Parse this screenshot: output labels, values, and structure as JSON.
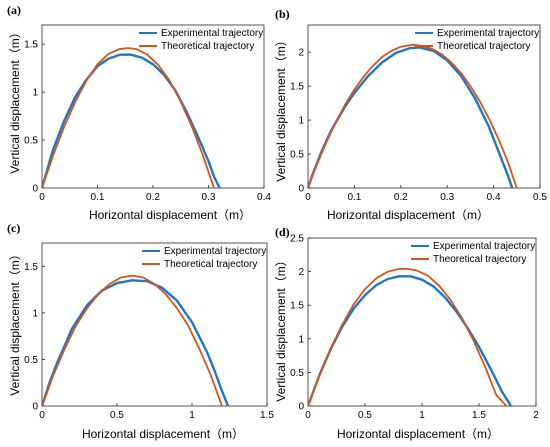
{
  "colors": {
    "experimental": "#1f77c4",
    "theoretical": "#d95319"
  },
  "chart_data": [
    {
      "type": "line",
      "panel_label": "(a)",
      "xlabel": "Horizontal displacement（m）",
      "ylabel": "Vertical displacement（m）",
      "xlim": [
        0,
        0.4
      ],
      "ylim": [
        0,
        1.7
      ],
      "xticks": [
        0,
        0.1,
        0.2,
        0.3,
        0.4
      ],
      "xtick_labels": [
        "0",
        "0.1",
        "0.2",
        "0.3",
        "0.4"
      ],
      "yticks": [
        0,
        0.5,
        1,
        1.5
      ],
      "ytick_labels": [
        "0",
        "0.5",
        "1",
        "1.5"
      ],
      "legend_position": "top-right",
      "series": [
        {
          "name": "Experimental trajectory",
          "x": [
            0,
            0.01,
            0.02,
            0.04,
            0.06,
            0.08,
            0.1,
            0.12,
            0.14,
            0.16,
            0.18,
            0.2,
            0.22,
            0.24,
            0.26,
            0.28,
            0.3,
            0.31,
            0.32
          ],
          "y": [
            0,
            0.2,
            0.4,
            0.7,
            0.95,
            1.13,
            1.27,
            1.35,
            1.39,
            1.39,
            1.36,
            1.29,
            1.18,
            1.02,
            0.8,
            0.55,
            0.28,
            0.12,
            0
          ]
        },
        {
          "name": "Theoretical trajectory",
          "x": [
            0,
            0.02,
            0.04,
            0.06,
            0.08,
            0.1,
            0.12,
            0.14,
            0.155,
            0.17,
            0.19,
            0.21,
            0.23,
            0.25,
            0.27,
            0.29,
            0.31
          ],
          "y": [
            0,
            0.34,
            0.64,
            0.9,
            1.12,
            1.29,
            1.4,
            1.45,
            1.46,
            1.45,
            1.39,
            1.28,
            1.12,
            0.9,
            0.64,
            0.34,
            0
          ]
        }
      ]
    },
    {
      "type": "line",
      "panel_label": "(b)",
      "xlabel": "Horizontal displacement（m）",
      "ylabel": "Vertical displacement（m）",
      "xlim": [
        0,
        0.5
      ],
      "ylim": [
        0,
        2.4
      ],
      "xticks": [
        0,
        0.1,
        0.2,
        0.3,
        0.4,
        0.5
      ],
      "xtick_labels": [
        "0",
        "0.1",
        "0.2",
        "0.3",
        "0.4",
        "0.5"
      ],
      "yticks": [
        0,
        0.5,
        1,
        1.5,
        2
      ],
      "ytick_labels": [
        "0",
        "0.5",
        "1",
        "1.5",
        "2"
      ],
      "legend_position": "top-right",
      "series": [
        {
          "name": "Experimental trajectory",
          "x": [
            0,
            0.01,
            0.03,
            0.05,
            0.08,
            0.1,
            0.13,
            0.16,
            0.19,
            0.22,
            0.24,
            0.27,
            0.3,
            0.33,
            0.36,
            0.39,
            0.41,
            0.43,
            0.44
          ],
          "y": [
            0,
            0.2,
            0.55,
            0.85,
            1.2,
            1.4,
            1.65,
            1.85,
            1.99,
            2.06,
            2.07,
            2.02,
            1.88,
            1.65,
            1.32,
            0.9,
            0.55,
            0.2,
            0
          ]
        },
        {
          "name": "Theoretical trajectory",
          "x": [
            0,
            0.02,
            0.04,
            0.06,
            0.08,
            0.1,
            0.12,
            0.14,
            0.16,
            0.18,
            0.2,
            0.225,
            0.25,
            0.27,
            0.29,
            0.31,
            0.33,
            0.35,
            0.37,
            0.39,
            0.41,
            0.43,
            0.45
          ],
          "y": [
            0,
            0.36,
            0.68,
            0.97,
            1.23,
            1.45,
            1.64,
            1.8,
            1.93,
            2.02,
            2.08,
            2.11,
            2.09,
            2.04,
            1.96,
            1.84,
            1.69,
            1.5,
            1.28,
            1.02,
            0.73,
            0.4,
            0
          ]
        }
      ]
    },
    {
      "type": "line",
      "panel_label": "(c)",
      "xlabel": "Horizontal displacement（m）",
      "ylabel": "Vertical displacement（m）",
      "xlim": [
        0,
        1.5
      ],
      "ylim": [
        0,
        1.75
      ],
      "xticks": [
        0,
        0.5,
        1,
        1.5
      ],
      "xtick_labels": [
        "0",
        "0.5",
        "1",
        "1.5"
      ],
      "yticks": [
        0,
        0.5,
        1,
        1.5
      ],
      "ytick_labels": [
        "0",
        "0.5",
        "1",
        "1.5"
      ],
      "legend_position": "top-right",
      "series": [
        {
          "name": "Experimental trajectory",
          "x": [
            0,
            0.05,
            0.1,
            0.2,
            0.3,
            0.4,
            0.5,
            0.6,
            0.7,
            0.8,
            0.9,
            1.0,
            1.1,
            1.15,
            1.2,
            1.24
          ],
          "y": [
            0,
            0.25,
            0.46,
            0.83,
            1.08,
            1.24,
            1.32,
            1.35,
            1.34,
            1.27,
            1.13,
            0.9,
            0.58,
            0.38,
            0.16,
            0
          ]
        },
        {
          "name": "Theoretical trajectory",
          "x": [
            0,
            0.075,
            0.15,
            0.225,
            0.3,
            0.375,
            0.45,
            0.525,
            0.6,
            0.675,
            0.75,
            0.825,
            0.9,
            0.975,
            1.05,
            1.125,
            1.2
          ],
          "y": [
            0,
            0.33,
            0.61,
            0.86,
            1.05,
            1.2,
            1.31,
            1.38,
            1.4,
            1.38,
            1.31,
            1.2,
            1.05,
            0.86,
            0.61,
            0.33,
            0
          ]
        }
      ]
    },
    {
      "type": "line",
      "panel_label": "(d)",
      "xlabel": "Horizontal displacement（m）",
      "ylabel": "Vertical displacement（m）",
      "xlim": [
        0,
        2
      ],
      "ylim": [
        0,
        2.5
      ],
      "xticks": [
        0,
        0.5,
        1,
        1.5,
        2
      ],
      "xtick_labels": [
        "0",
        "0.5",
        "1",
        "1.5",
        "2"
      ],
      "yticks": [
        0,
        0.5,
        1,
        1.5,
        2,
        2.5
      ],
      "ytick_labels": [
        "0",
        "0.5",
        "1",
        "1.5",
        "2",
        "2.5"
      ],
      "legend_position": "top-right",
      "series": [
        {
          "name": "Experimental trajectory",
          "x": [
            0,
            0.1,
            0.2,
            0.3,
            0.4,
            0.5,
            0.6,
            0.7,
            0.8,
            0.9,
            1.0,
            1.1,
            1.2,
            1.3,
            1.4,
            1.5,
            1.6,
            1.7,
            1.78
          ],
          "y": [
            0,
            0.46,
            0.85,
            1.18,
            1.45,
            1.65,
            1.8,
            1.89,
            1.93,
            1.93,
            1.88,
            1.78,
            1.62,
            1.41,
            1.16,
            0.88,
            0.56,
            0.22,
            0
          ]
        },
        {
          "name": "Theoretical trajectory",
          "x": [
            0,
            0.1,
            0.2,
            0.3,
            0.4,
            0.5,
            0.6,
            0.7,
            0.8,
            0.87,
            0.95,
            1.05,
            1.15,
            1.25,
            1.35,
            1.45,
            1.55,
            1.65,
            1.74
          ],
          "y": [
            0,
            0.45,
            0.86,
            1.21,
            1.51,
            1.74,
            1.9,
            2.0,
            2.04,
            2.04,
            2.02,
            1.94,
            1.79,
            1.58,
            1.31,
            0.98,
            0.6,
            0.17,
            0
          ]
        }
      ]
    }
  ]
}
